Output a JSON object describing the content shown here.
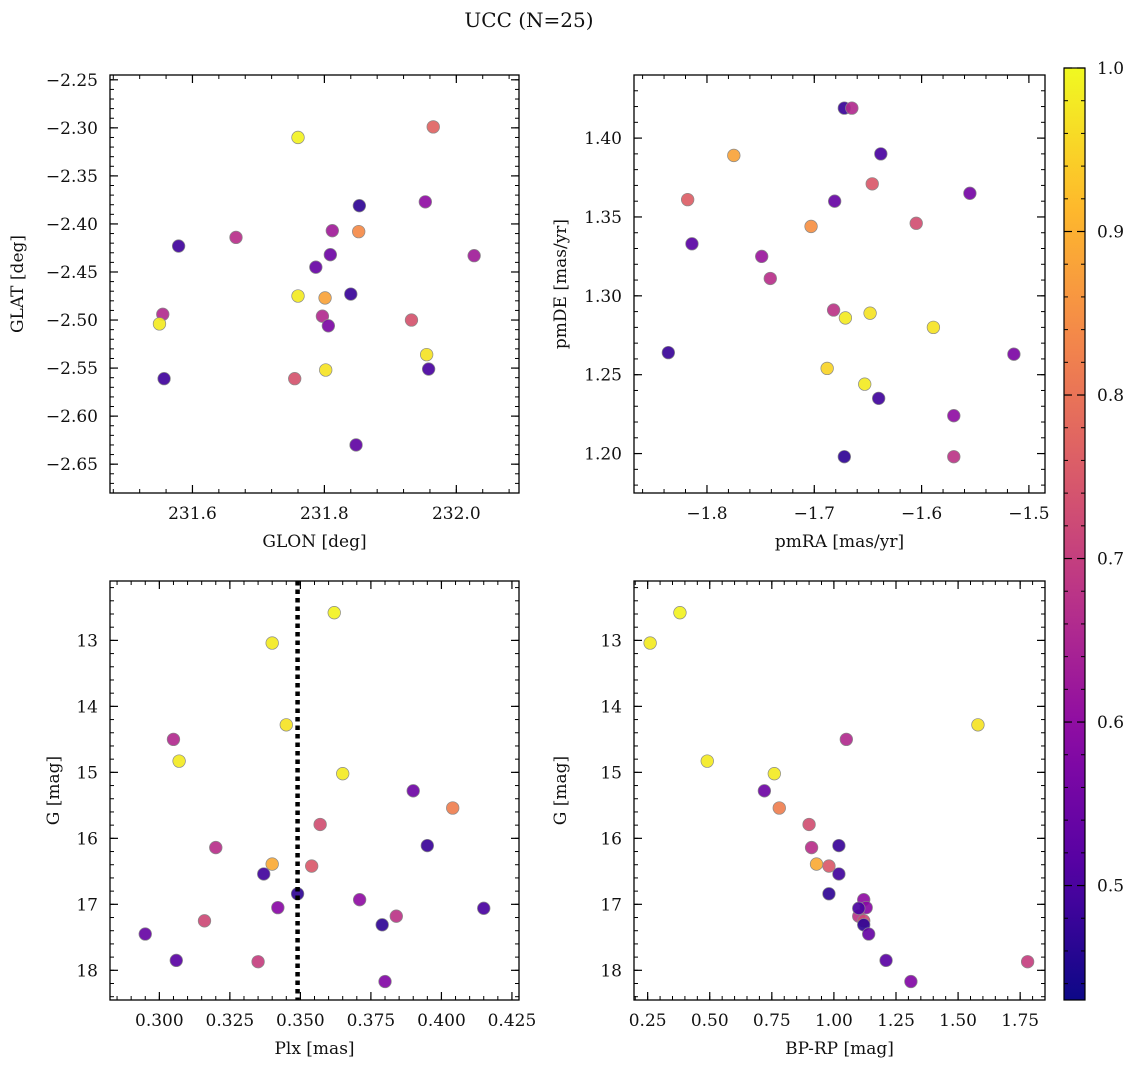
{
  "figure": {
    "title": "UCC (N=25)"
  },
  "colorbar": {
    "min": 0.43,
    "max": 1.0,
    "ticks": [
      0.5,
      0.6,
      0.7,
      0.8,
      0.9,
      1.0
    ],
    "tick_labels": [
      "0.5",
      "0.6",
      "0.7",
      "0.8",
      "0.9",
      "1.0"
    ],
    "colormap": "plasma"
  },
  "chart_data": [
    {
      "type": "scatter",
      "xlabel": "GLON [deg]",
      "ylabel": "GLAT [deg]",
      "xlim": [
        231.475,
        232.095
      ],
      "ylim": [
        -2.68,
        -2.245
      ],
      "xticks": [
        231.6,
        231.8,
        232.0
      ],
      "xtick_labels": [
        "231.6",
        "231.8",
        "232.0"
      ],
      "yticks": [
        -2.65,
        -2.6,
        -2.55,
        -2.5,
        -2.45,
        -2.4,
        -2.35,
        -2.3,
        -2.25
      ],
      "ytick_labels": [
        "−2.65",
        "−2.60",
        "−2.55",
        "−2.50",
        "−2.45",
        "−2.40",
        "−2.35",
        "−2.30",
        "−2.25"
      ],
      "x": [
        231.76,
        231.965,
        231.579,
        231.666,
        231.812,
        231.809,
        231.853,
        231.852,
        231.787,
        231.84,
        231.801,
        231.76,
        231.797,
        231.806,
        231.555,
        231.55,
        231.932,
        231.955,
        231.802,
        231.958,
        231.755,
        231.557,
        231.848,
        232.027,
        231.953
      ],
      "y": [
        -2.31,
        -2.299,
        -2.423,
        -2.414,
        -2.407,
        -2.432,
        -2.381,
        -2.408,
        -2.445,
        -2.473,
        -2.477,
        -2.475,
        -2.496,
        -2.506,
        -2.494,
        -2.504,
        -2.5,
        -2.536,
        -2.552,
        -2.551,
        -2.561,
        -2.561,
        -2.63,
        -2.433,
        -2.377
      ],
      "c": [
        0.99,
        0.77,
        0.49,
        0.67,
        0.63,
        0.55,
        0.47,
        0.84,
        0.54,
        0.48,
        0.88,
        0.98,
        0.66,
        0.57,
        0.66,
        0.98,
        0.74,
        0.97,
        0.97,
        0.5,
        0.74,
        0.49,
        0.53,
        0.63,
        0.6
      ],
      "vline": null
    },
    {
      "type": "scatter",
      "xlabel": "pmRA [mas/yr]",
      "ylabel": "pmDE [mas/yr]",
      "xlim": [
        -1.868,
        -1.485
      ],
      "ylim": [
        1.175,
        1.44
      ],
      "xticks": [
        -1.8,
        -1.7,
        -1.6,
        -1.5
      ],
      "xtick_labels": [
        "−1.8",
        "−1.7",
        "−1.6",
        "−1.5"
      ],
      "yticks": [
        1.2,
        1.25,
        1.3,
        1.35,
        1.4
      ],
      "ytick_labels": [
        "1.20",
        "1.25",
        "1.30",
        "1.35",
        "1.40"
      ],
      "x": [
        -1.672,
        -1.665,
        -1.775,
        -1.638,
        -1.646,
        -1.555,
        -1.818,
        -1.681,
        -1.814,
        -1.703,
        -1.605,
        -1.749,
        -1.741,
        -1.682,
        -1.671,
        -1.648,
        -1.589,
        -1.836,
        -1.514,
        -1.688,
        -1.653,
        -1.64,
        -1.57,
        -1.672,
        -1.57
      ],
      "y": [
        1.419,
        1.419,
        1.389,
        1.39,
        1.371,
        1.365,
        1.361,
        1.36,
        1.333,
        1.344,
        1.346,
        1.325,
        1.311,
        1.291,
        1.286,
        1.289,
        1.28,
        1.264,
        1.263,
        1.254,
        1.244,
        1.235,
        1.224,
        1.198,
        1.198
      ],
      "c": [
        0.48,
        0.66,
        0.88,
        0.5,
        0.75,
        0.56,
        0.76,
        0.54,
        0.52,
        0.85,
        0.73,
        0.62,
        0.67,
        0.68,
        0.98,
        0.97,
        0.97,
        0.48,
        0.57,
        0.95,
        0.98,
        0.49,
        0.6,
        0.47,
        0.68
      ],
      "vline": null
    },
    {
      "type": "scatter",
      "xlabel": "Plx [mas]",
      "ylabel": "G [mag]",
      "xlim": [
        0.2825,
        0.4275
      ],
      "ylim": [
        18.45,
        12.1
      ],
      "xticks": [
        0.3,
        0.325,
        0.35,
        0.375,
        0.4,
        0.425
      ],
      "xtick_labels": [
        "0.300",
        "0.325",
        "0.350",
        "0.375",
        "0.400",
        "0.425"
      ],
      "yticks": [
        13,
        14,
        15,
        16,
        17,
        18
      ],
      "ytick_labels": [
        "13",
        "14",
        "15",
        "16",
        "17",
        "18"
      ],
      "x": [
        0.362,
        0.34,
        0.345,
        0.305,
        0.307,
        0.365,
        0.39,
        0.404,
        0.357,
        0.32,
        0.395,
        0.34,
        0.354,
        0.337,
        0.349,
        0.371,
        0.342,
        0.384,
        0.316,
        0.379,
        0.415,
        0.295,
        0.306,
        0.335,
        0.38
      ],
      "y": [
        12.58,
        13.04,
        14.28,
        14.5,
        14.83,
        15.02,
        15.28,
        15.54,
        15.79,
        16.14,
        16.11,
        16.39,
        16.42,
        16.54,
        16.84,
        16.93,
        17.05,
        17.18,
        17.25,
        17.31,
        17.06,
        17.45,
        17.85,
        17.87,
        18.17
      ],
      "c": [
        0.99,
        0.98,
        0.97,
        0.66,
        0.98,
        0.98,
        0.55,
        0.82,
        0.73,
        0.67,
        0.48,
        0.89,
        0.75,
        0.49,
        0.47,
        0.6,
        0.59,
        0.68,
        0.72,
        0.47,
        0.5,
        0.54,
        0.52,
        0.7,
        0.58
      ],
      "vline": 0.349
    },
    {
      "type": "scatter",
      "xlabel": "BP-RP [mag]",
      "ylabel": "G [mag]",
      "xlim": [
        0.195,
        1.85
      ],
      "ylim": [
        18.45,
        12.1
      ],
      "xticks": [
        0.25,
        0.5,
        0.75,
        1.0,
        1.25,
        1.5,
        1.75
      ],
      "xtick_labels": [
        "0.25",
        "0.50",
        "0.75",
        "1.00",
        "1.25",
        "1.50",
        "1.75"
      ],
      "yticks": [
        13,
        14,
        15,
        16,
        17,
        18
      ],
      "ytick_labels": [
        "13",
        "14",
        "15",
        "16",
        "17",
        "18"
      ],
      "x": [
        0.38,
        0.26,
        1.58,
        0.49,
        0.76,
        1.05,
        0.72,
        0.78,
        0.9,
        0.91,
        1.02,
        0.93,
        0.98,
        1.02,
        0.98,
        1.12,
        1.13,
        1.1,
        1.12,
        1.12,
        1.1,
        1.14,
        1.21,
        1.78,
        1.31
      ],
      "y": [
        12.58,
        13.04,
        14.28,
        14.83,
        15.02,
        14.5,
        15.28,
        15.54,
        15.79,
        16.14,
        16.11,
        16.39,
        16.42,
        16.54,
        16.84,
        16.93,
        17.05,
        17.18,
        17.25,
        17.31,
        17.06,
        17.45,
        17.85,
        17.87,
        18.17
      ],
      "c": [
        0.99,
        0.98,
        0.97,
        0.98,
        0.98,
        0.66,
        0.55,
        0.82,
        0.73,
        0.67,
        0.48,
        0.89,
        0.75,
        0.49,
        0.47,
        0.6,
        0.59,
        0.68,
        0.72,
        0.47,
        0.5,
        0.54,
        0.52,
        0.7,
        0.58
      ],
      "vline": null
    }
  ]
}
